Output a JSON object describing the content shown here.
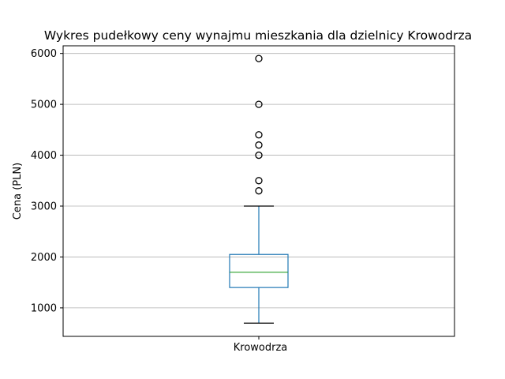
{
  "chart_data": {
    "type": "box",
    "title": "Wykres pudełkowy ceny wynajmu mieszkania dla dzielnicy  Krowodrza",
    "xlabel": "",
    "ylabel": "Cena (PLN)",
    "categories": [
      "Krowodrza"
    ],
    "ylim": [
      440,
      6150
    ],
    "yticks": [
      1000,
      2000,
      3000,
      4000,
      5000,
      6000
    ],
    "grid": "horizontal",
    "boxes": [
      {
        "name": "Krowodrza",
        "whisker_low": 700,
        "q1": 1400,
        "median": 1700,
        "q3": 2050,
        "whisker_high": 3000,
        "outliers": [
          3300,
          3500,
          4000,
          4200,
          4400,
          5000,
          5900
        ]
      }
    ],
    "colors": {
      "box": "#1f77b4",
      "median": "#2ca02c",
      "whisker_cap": "#000000",
      "grid": "#b0b0b0"
    }
  }
}
